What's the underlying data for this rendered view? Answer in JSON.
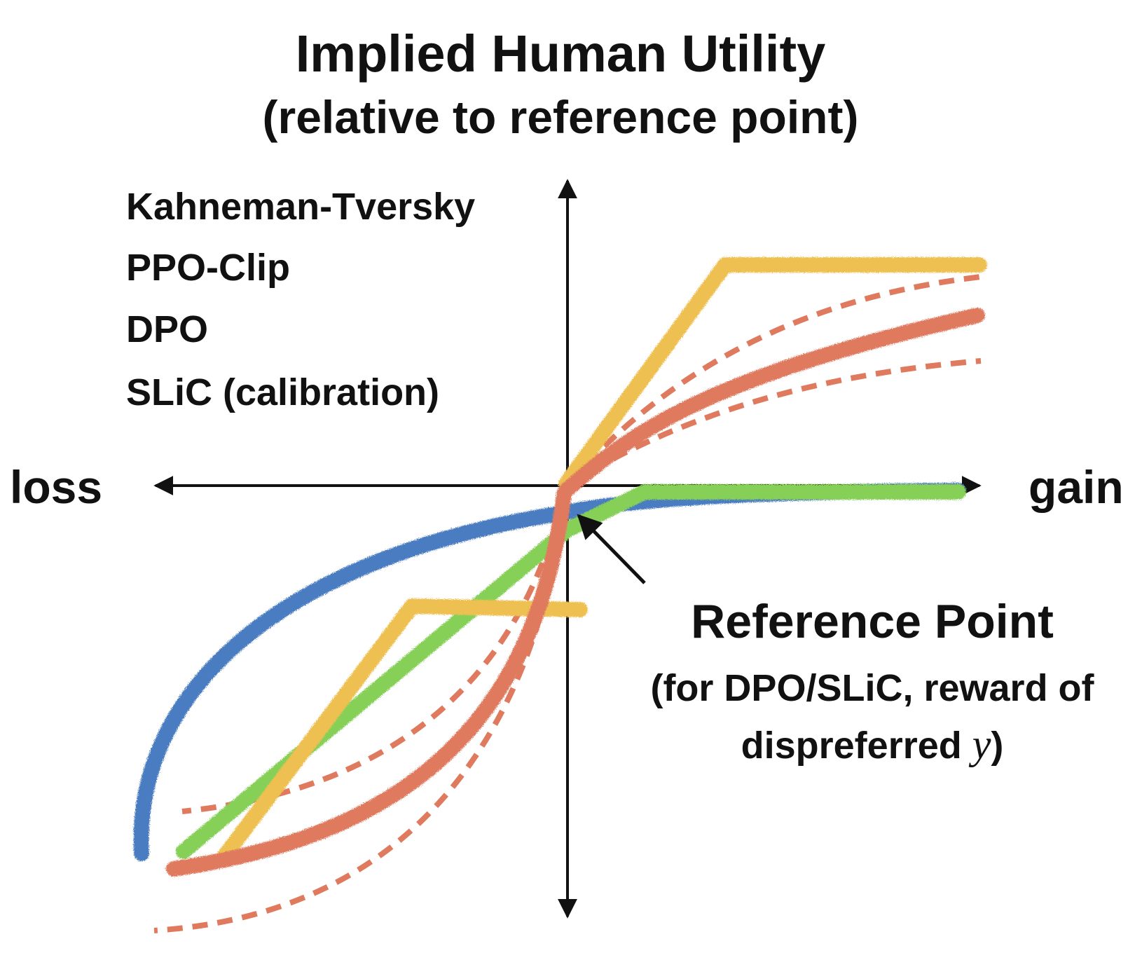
{
  "title": "Implied Human Utility",
  "subtitle": "(relative to reference point)",
  "axes": {
    "left_label": "loss",
    "right_label": "gain"
  },
  "legend": [
    {
      "label": "Kahneman-Tversky",
      "color": "#e07a5f"
    },
    {
      "label": "PPO-Clip",
      "color": "#eec051"
    },
    {
      "label": "DPO",
      "color": "#4a7cc0"
    },
    {
      "label": "SLiC (calibration)",
      "color": "#86d058"
    }
  ],
  "annotation": {
    "title": "Reference Point",
    "note_line1": "(for DPO/SLiC, reward of",
    "note_line2_text": "dispreferred ",
    "note_line2_var": "y",
    "note_line2_close": ")"
  }
}
